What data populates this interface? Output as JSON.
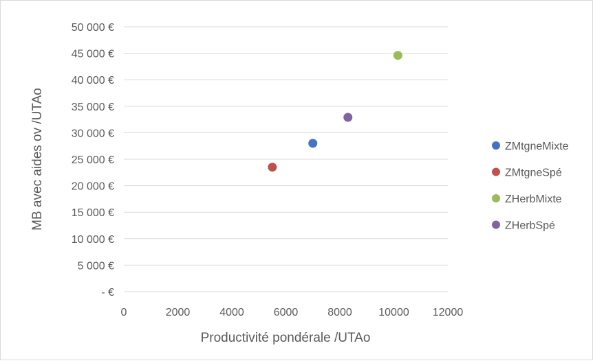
{
  "chart_data": {
    "type": "scatter",
    "title": "",
    "xlabel": "Productivité pondérale /UTAo",
    "ylabel": "MB avec aides ov /UTAo",
    "xlim": [
      0,
      12000
    ],
    "ylim": [
      0,
      50000
    ],
    "x_ticks": [
      0,
      2000,
      4000,
      6000,
      8000,
      10000,
      12000
    ],
    "x_tick_labels": [
      "0",
      "2000",
      "4000",
      "6000",
      "8000",
      "10000",
      "12000"
    ],
    "y_ticks": [
      0,
      5000,
      10000,
      15000,
      20000,
      25000,
      30000,
      35000,
      40000,
      45000,
      50000
    ],
    "y_tick_labels": [
      "-  €",
      "5 000 €",
      "10 000 €",
      "15 000 €",
      "20 000 €",
      "25 000 €",
      "30 000 €",
      "35 000 €",
      "40 000 €",
      "45 000 €",
      "50 000 €"
    ],
    "grid": "horizontal",
    "legend_position": "right",
    "series": [
      {
        "name": "ZMtgneMixte",
        "color": "#4472c4",
        "x": [
          7000
        ],
        "y": [
          28000
        ]
      },
      {
        "name": "ZMtgneSpé",
        "color": "#c0504d",
        "x": [
          5500
        ],
        "y": [
          23500
        ]
      },
      {
        "name": "ZHerbMixte",
        "color": "#9bbb59",
        "x": [
          10150
        ],
        "y": [
          44600
        ]
      },
      {
        "name": "ZHerbSpé",
        "color": "#8064a2",
        "x": [
          8300
        ],
        "y": [
          32900
        ]
      }
    ]
  }
}
